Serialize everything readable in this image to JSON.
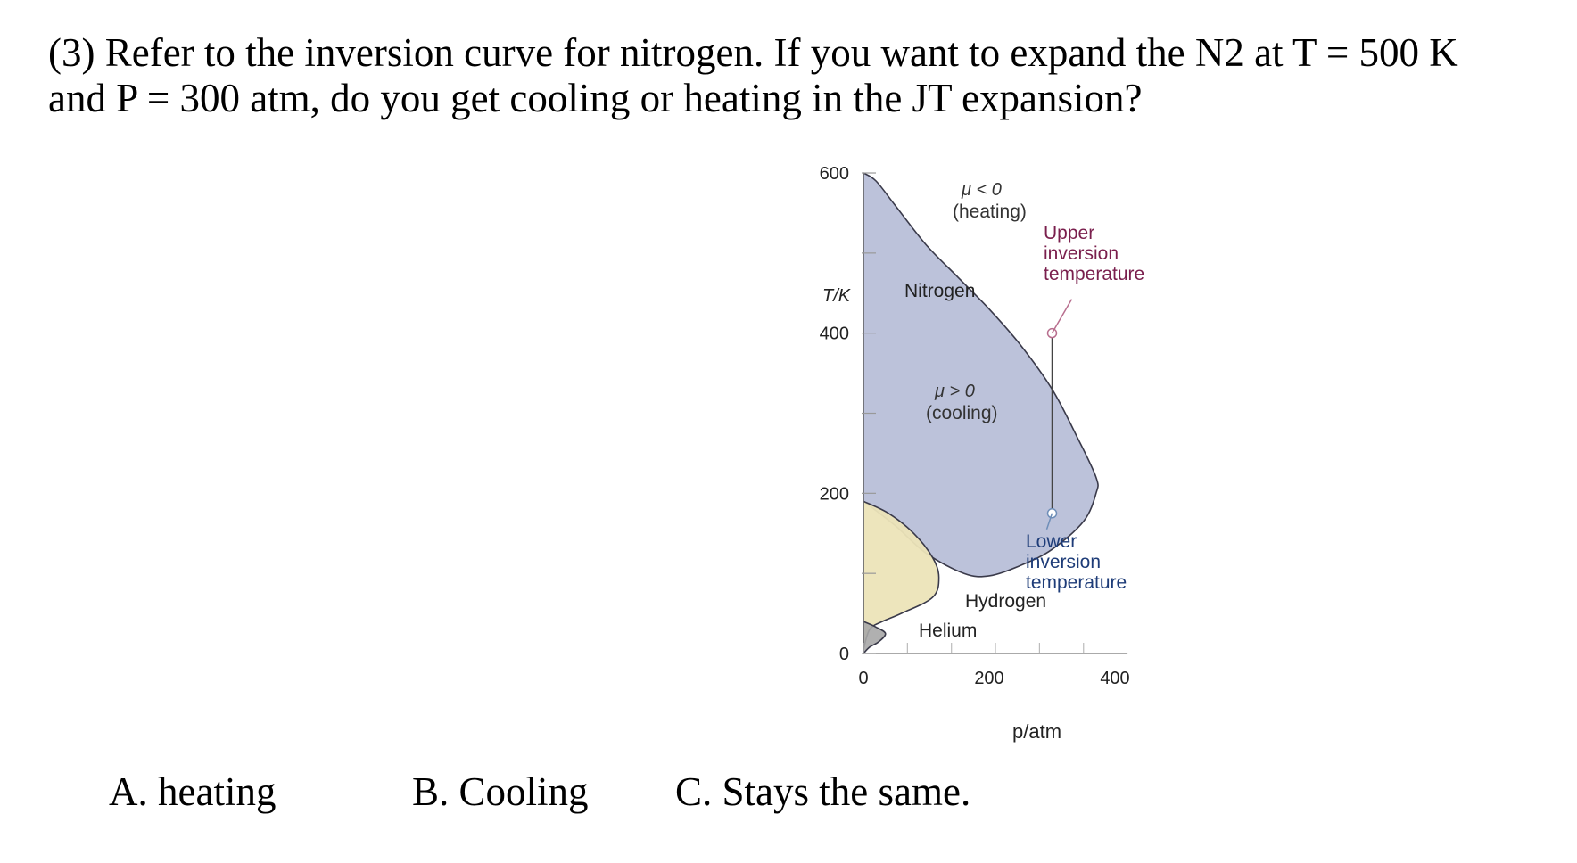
{
  "question": {
    "line1": "(3) Refer to the inversion curve for nitrogen.  If you want to expand the N2 at T = 500 K",
    "line2": "and P = 300 atm, do you get cooling or heating in the JT expansion?"
  },
  "options": {
    "a": "A.  heating",
    "b": "B. Cooling",
    "c": "C. Stays the same."
  },
  "chart_data": {
    "type": "area",
    "xlabel": "p/atm",
    "ylabel": "T/K",
    "xlim": [
      0,
      420
    ],
    "ylim": [
      0,
      600
    ],
    "x_ticks": [
      "0",
      "200",
      "400"
    ],
    "y_ticks": [
      "0",
      "200",
      "400",
      "600"
    ],
    "series": [
      {
        "name": "Nitrogen",
        "color": "#b8bfd8",
        "points": [
          [
            0,
            600
          ],
          [
            20,
            590
          ],
          [
            50,
            560
          ],
          [
            100,
            510
          ],
          [
            150,
            470
          ],
          [
            200,
            430
          ],
          [
            250,
            385
          ],
          [
            300,
            330
          ],
          [
            340,
            270
          ],
          [
            370,
            220
          ],
          [
            370,
            200
          ],
          [
            350,
            165
          ],
          [
            300,
            130
          ],
          [
            250,
            110
          ],
          [
            200,
            97
          ],
          [
            160,
            100
          ],
          [
            100,
            125
          ],
          [
            50,
            160
          ],
          [
            0,
            190
          ]
        ]
      },
      {
        "name": "Hydrogen",
        "color": "#ece4b8",
        "points": [
          [
            0,
            190
          ],
          [
            40,
            175
          ],
          [
            80,
            150
          ],
          [
            110,
            120
          ],
          [
            120,
            95
          ],
          [
            110,
            70
          ],
          [
            60,
            50
          ],
          [
            30,
            40
          ],
          [
            10,
            30
          ],
          [
            0,
            5
          ]
        ]
      },
      {
        "name": "Helium",
        "color": "#a7a7a7",
        "points": [
          [
            0,
            40
          ],
          [
            20,
            33
          ],
          [
            35,
            25
          ],
          [
            25,
            15
          ],
          [
            10,
            8
          ],
          [
            0,
            0
          ]
        ]
      }
    ],
    "annotations": {
      "heating": [
        "μ < 0",
        "(heating)"
      ],
      "cooling": [
        "μ > 0",
        "(cooling)"
      ],
      "upper": [
        "Upper",
        "inversion",
        "temperature"
      ],
      "lower": [
        "Lower",
        "inversion",
        "temperature"
      ]
    },
    "inversion_line_pressure": 300,
    "upper_point": [
      300,
      400
    ],
    "lower_point": [
      300,
      175
    ],
    "colors": {
      "upper_text": "#7a1f4d",
      "lower_text": "#1e3c78",
      "axis": "#777777"
    }
  }
}
